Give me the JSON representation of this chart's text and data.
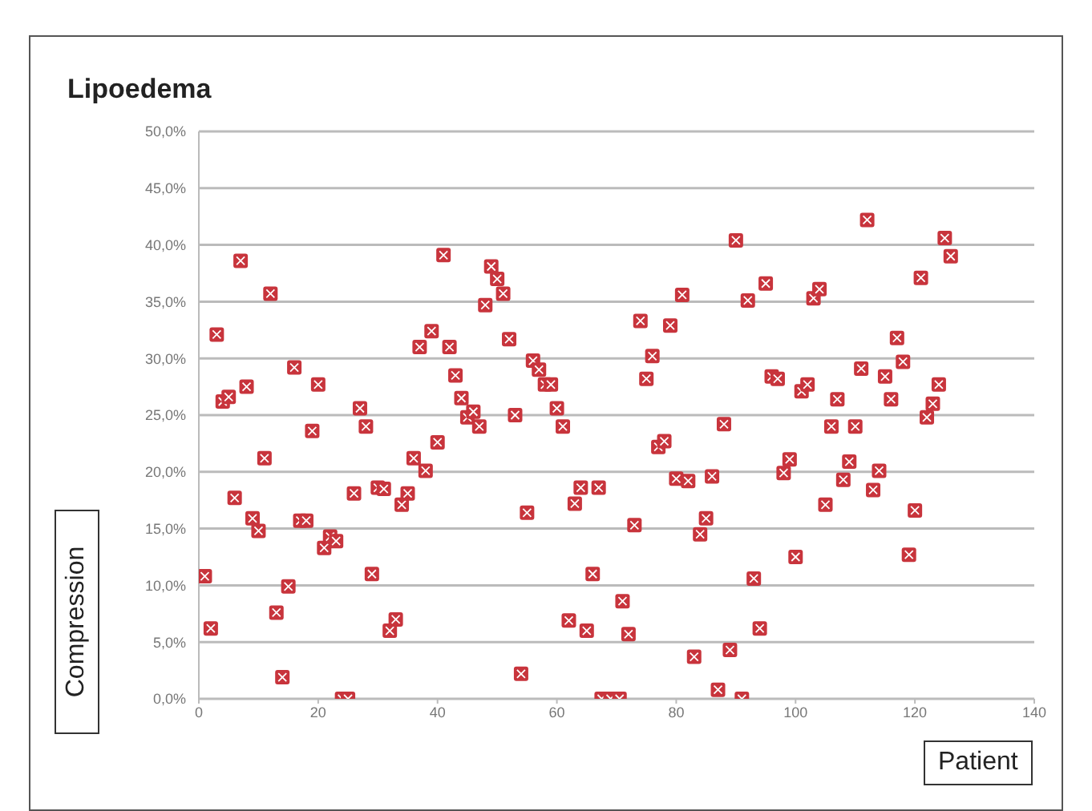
{
  "chart_data": {
    "type": "scatter",
    "title": "Lipoedema",
    "xlabel": "Patient",
    "ylabel": "Compression",
    "x": [
      1,
      2,
      3,
      4,
      5,
      6,
      7,
      8,
      9,
      10,
      11,
      12,
      13,
      14,
      15,
      16,
      17,
      18,
      19,
      20,
      21,
      22,
      23,
      24,
      25,
      26,
      27,
      28,
      29,
      30,
      31,
      32,
      33,
      34,
      35,
      36,
      37,
      38,
      39,
      40,
      41,
      42,
      43,
      44,
      45,
      46,
      47,
      48,
      49,
      50,
      51,
      52,
      53,
      54,
      55,
      56,
      57,
      58,
      59,
      60,
      61,
      62,
      63,
      64,
      65,
      66,
      67,
      67.5,
      69,
      70.5,
      71,
      72,
      73,
      74,
      75,
      76,
      77,
      78,
      79,
      80,
      81,
      82,
      83,
      84,
      85,
      86,
      87,
      88,
      89,
      90,
      91,
      92,
      93,
      94,
      95,
      96,
      97,
      98,
      99,
      100,
      101,
      102,
      103,
      104,
      105,
      106,
      107,
      108,
      109,
      110,
      111,
      112,
      113,
      114,
      115,
      116,
      117,
      118,
      119,
      120,
      121,
      122,
      123,
      124,
      125,
      126
    ],
    "values": [
      10.8,
      6.2,
      32.1,
      26.2,
      26.6,
      17.7,
      38.6,
      27.5,
      15.9,
      14.8,
      21.2,
      35.7,
      7.6,
      1.9,
      9.9,
      29.2,
      15.7,
      15.7,
      23.6,
      27.7,
      13.3,
      14.3,
      13.9,
      0,
      0,
      18.1,
      25.6,
      24.0,
      11.0,
      18.6,
      18.5,
      6.0,
      7.0,
      17.1,
      18.1,
      21.2,
      31.0,
      20.1,
      32.4,
      22.6,
      39.1,
      31.0,
      28.5,
      26.5,
      24.8,
      25.3,
      24.0,
      34.7,
      38.1,
      37.0,
      35.7,
      31.7,
      25.0,
      2.2,
      16.4,
      29.8,
      29.0,
      27.7,
      27.7,
      25.6,
      24.0,
      6.9,
      17.2,
      18.6,
      6.0,
      11.0,
      18.6,
      0,
      0,
      0,
      8.6,
      5.7,
      15.3,
      33.3,
      28.2,
      30.2,
      22.2,
      22.7,
      32.9,
      19.4,
      35.6,
      19.2,
      3.7,
      14.5,
      15.9,
      19.6,
      0.8,
      24.2,
      4.3,
      40.4,
      0,
      35.1,
      10.6,
      6.2,
      36.6,
      28.4,
      28.2,
      19.9,
      21.1,
      12.5,
      27.1,
      27.7,
      35.3,
      36.1,
      17.1,
      24.0,
      26.4,
      19.3,
      20.9,
      24.0,
      29.1,
      42.2,
      18.4,
      20.1,
      28.4,
      26.4,
      31.8,
      29.7,
      12.7,
      16.6,
      37.1,
      24.8,
      26.0,
      27.7,
      40.6,
      39.0
    ],
    "color": "#c8343c",
    "marker": "square",
    "xlim": [
      0,
      140
    ],
    "xticks": [
      0,
      20,
      40,
      60,
      80,
      100,
      120,
      140
    ],
    "ylim": [
      0,
      50
    ],
    "yticks": [
      {
        "value": 0,
        "label": "0,0%"
      },
      {
        "value": 5,
        "label": "5,0%"
      },
      {
        "value": 10,
        "label": "10,0%"
      },
      {
        "value": 15,
        "label": "15,0%"
      },
      {
        "value": 20,
        "label": "20,0%"
      },
      {
        "value": 25,
        "label": "25,0%"
      },
      {
        "value": 30,
        "label": "30,0%"
      },
      {
        "value": 35,
        "label": "35,0%"
      },
      {
        "value": 40,
        "label": "40,0%"
      },
      {
        "value": 45,
        "label": "45,0%"
      },
      {
        "value": 50,
        "label": "50,0%"
      }
    ],
    "grid": "y"
  }
}
